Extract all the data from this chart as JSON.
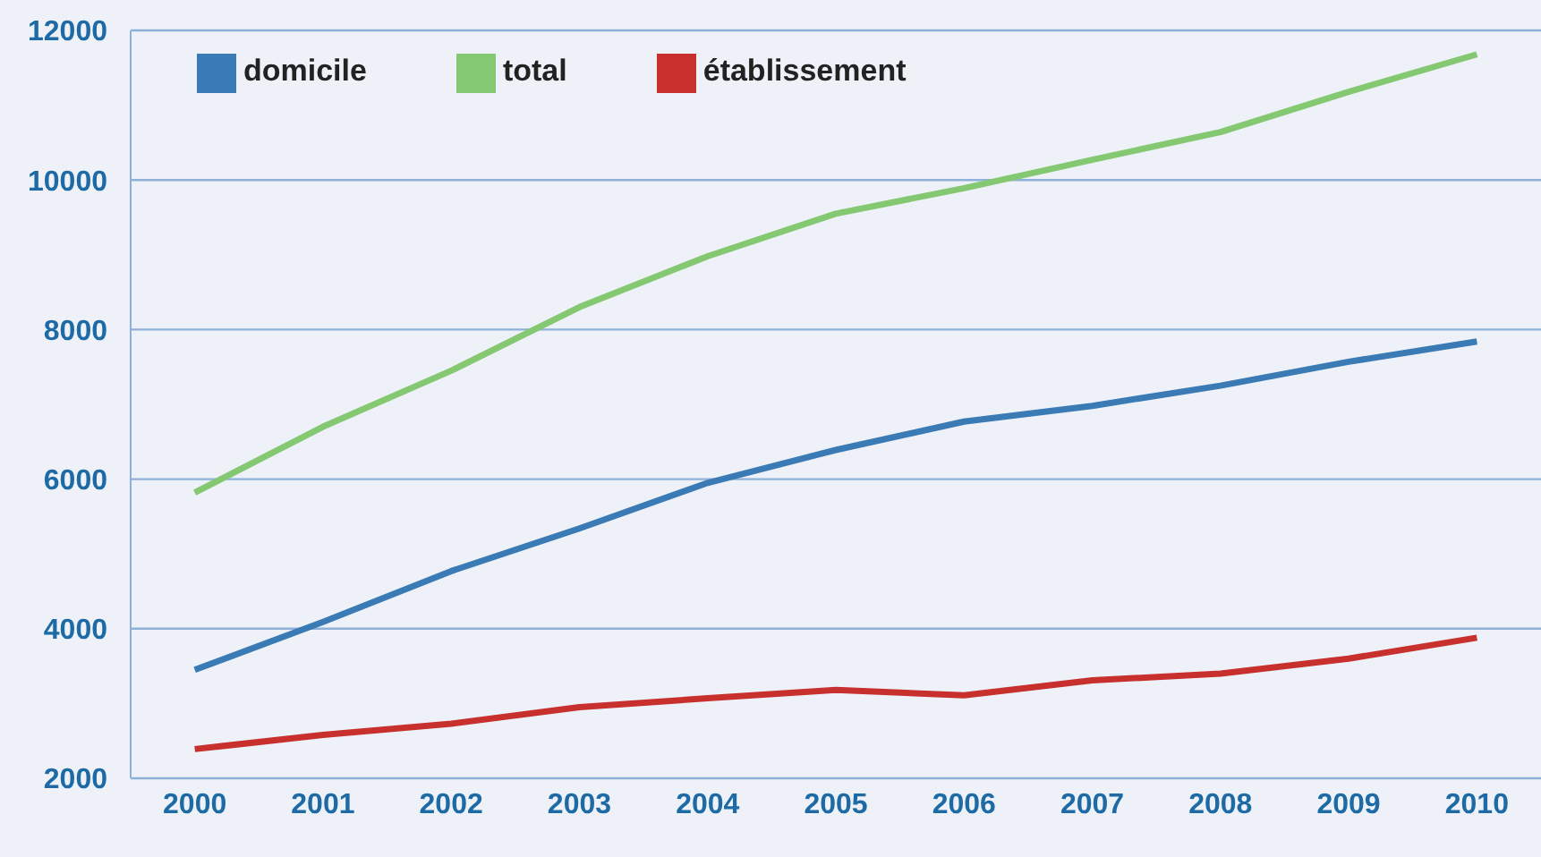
{
  "chart_data": {
    "type": "line",
    "categories": [
      "2000",
      "2001",
      "2002",
      "2003",
      "2004",
      "2005",
      "2006",
      "2007",
      "2008",
      "2009",
      "2010"
    ],
    "series": [
      {
        "name": "domicile",
        "color": "#3a7ab5",
        "values": [
          3450,
          4090,
          4770,
          5340,
          5950,
          6390,
          6770,
          6980,
          7250,
          7570,
          7840
        ]
      },
      {
        "name": "établissement",
        "color": "#c8302e",
        "values": [
          2390,
          2580,
          2730,
          2950,
          3070,
          3180,
          3110,
          3310,
          3400,
          3600,
          3880
        ]
      },
      {
        "name": "total",
        "color": "#85c872",
        "values": [
          5820,
          6700,
          7450,
          8300,
          8980,
          9550,
          9890,
          10270,
          10640,
          11180,
          11680
        ]
      }
    ],
    "ylim": [
      2000,
      12000
    ],
    "yticks": [
      2000,
      4000,
      6000,
      8000,
      10000,
      12000
    ],
    "grid": "y",
    "legend": "top left",
    "marker": "none",
    "line_style": "solid"
  }
}
